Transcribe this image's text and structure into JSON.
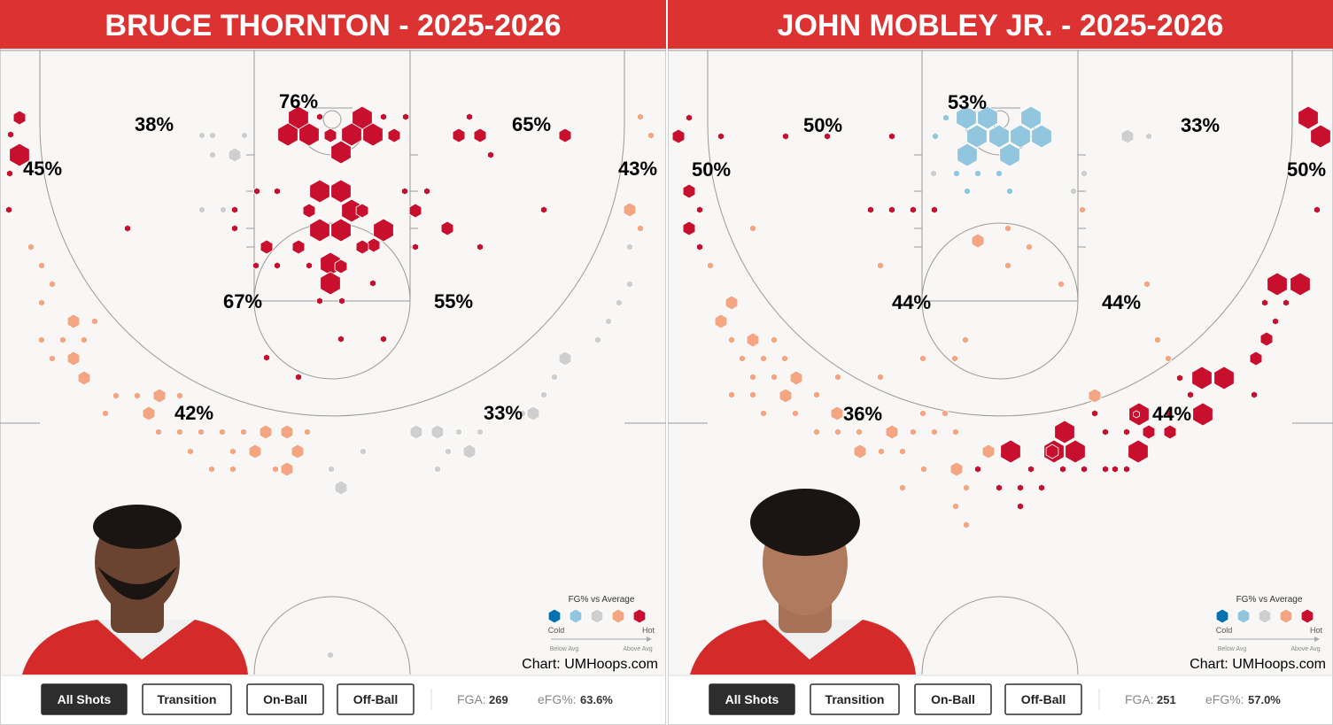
{
  "panels": [
    {
      "title": "BRUCE THORNTON - 2025-2026",
      "zones": [
        "38%",
        "76%",
        "65%",
        "45%",
        "43%",
        "67%",
        "55%",
        "42%",
        "33%"
      ],
      "legend": {
        "title": "FG% vs Average",
        "cold": "Cold",
        "hot": "Hot",
        "below": "Below Avg",
        "above": "Above Avg"
      },
      "credit": "Chart: UMHoops.com",
      "buttons": [
        "All Shots",
        "Transition",
        "On-Ball",
        "Off-Ball"
      ],
      "stats": [
        {
          "label": "FGA:",
          "value": "269"
        },
        {
          "label": "eFG%:",
          "value": "63.6%"
        }
      ]
    },
    {
      "title": "JOHN MOBLEY JR. - 2025-2026",
      "zones": [
        "50%",
        "53%",
        "33%",
        "50%",
        "50%",
        "44%",
        "44%",
        "36%",
        "44%"
      ],
      "legend": {
        "title": "FG% vs Average",
        "cold": "Cold",
        "hot": "Hot",
        "below": "Below Avg",
        "above": "Above Avg"
      },
      "credit": "Chart: UMHoops.com",
      "buttons": [
        "All Shots",
        "Transition",
        "On-Ball",
        "Off-Ball"
      ],
      "stats": [
        {
          "label": "FGA:",
          "value": "251"
        },
        {
          "label": "eFG%:",
          "value": "57.0%"
        }
      ]
    }
  ]
}
